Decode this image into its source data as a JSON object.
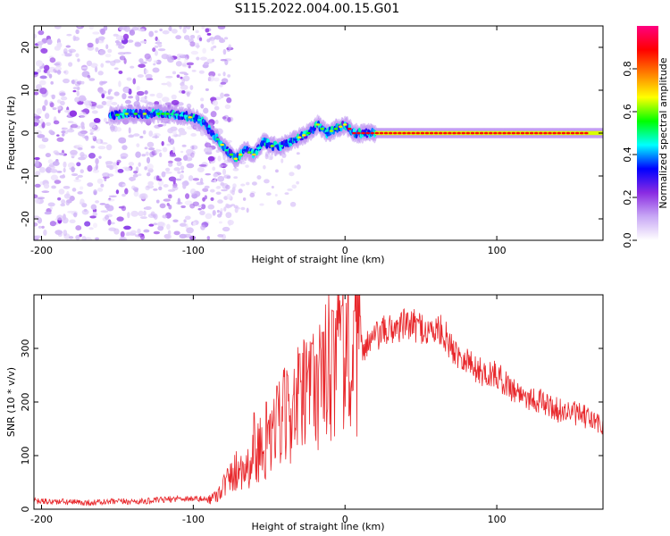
{
  "title": "S115.2022.004.00.15.G01",
  "chart_data": [
    {
      "type": "heatmap",
      "title": "",
      "xlabel": "Height of straight line (km)",
      "ylabel": "Frequency (Hz)",
      "xlim": [
        -205,
        170
      ],
      "ylim": [
        -25,
        25
      ],
      "x_ticks": [
        -200,
        -100,
        0,
        100
      ],
      "y_ticks": [
        -20,
        -10,
        0,
        10,
        20
      ],
      "colorbar": {
        "label": "Normalized spectral amplitude",
        "range": [
          0,
          1
        ],
        "ticks": [
          0.0,
          0.2,
          0.4,
          0.6,
          0.8
        ],
        "colormap": [
          "#ffffff",
          "#c8a8f5",
          "#8a2be2",
          "#0000ff",
          "#00ffff",
          "#00ff00",
          "#ffff00",
          "#ff7f00",
          "#ff0000",
          "#ff0080"
        ]
      },
      "ridge": {
        "x": [
          -155,
          -145,
          -135,
          -125,
          -115,
          -105,
          -95,
          -85,
          -78,
          -72,
          -66,
          -60,
          -54,
          -48,
          -42,
          -36,
          -30,
          -24,
          -18,
          -12,
          -6,
          0,
          6,
          20,
          50,
          100,
          170
        ],
        "freq": [
          4,
          4.5,
          4.5,
          4.5,
          4.5,
          4,
          3,
          -1,
          -4,
          -6,
          -4,
          -5,
          -2,
          -3,
          -3,
          -2,
          -1,
          0,
          2,
          0,
          1,
          2,
          0,
          0,
          0,
          0,
          0
        ]
      },
      "noise_region": [
        -205,
        -90
      ]
    },
    {
      "type": "line",
      "title": "",
      "xlabel": "Height of straight line (km)",
      "ylabel": "SNR (10 * v/v)",
      "xlim": [
        -205,
        170
      ],
      "ylim": [
        0,
        400
      ],
      "x_ticks": [
        -200,
        -100,
        0,
        100
      ],
      "y_ticks": [
        0,
        100,
        200,
        300
      ],
      "color": "#e8272b",
      "series": [
        {
          "x": [
            -205,
            -190,
            -170,
            -150,
            -130,
            -110,
            -100,
            -90,
            -85,
            -80,
            -75,
            -70,
            -65,
            -60,
            -55,
            -50,
            -45,
            -40,
            -35,
            -30,
            -25,
            -20,
            -15,
            -10,
            -5,
            0,
            5,
            10,
            15,
            20,
            25,
            30,
            40,
            50,
            55,
            60,
            65,
            70,
            75,
            80,
            85,
            90,
            100,
            110,
            120,
            130,
            140,
            150,
            160,
            170
          ],
          "values": [
            15,
            14,
            12,
            14,
            15,
            20,
            20,
            18,
            25,
            45,
            60,
            80,
            75,
            95,
            120,
            110,
            150,
            170,
            190,
            200,
            210,
            230,
            250,
            270,
            300,
            280,
            270,
            300,
            310,
            320,
            330,
            335,
            345,
            340,
            330,
            335,
            330,
            300,
            290,
            280,
            265,
            255,
            250,
            225,
            210,
            200,
            185,
            180,
            170,
            155
          ],
          "spikes": {
            "x": [
              -60,
              -52,
              -45,
              -38,
              -30,
              -22,
              -15,
              -8,
              -2,
              2,
              6,
              10
            ],
            "values": [
              180,
              200,
              230,
              250,
              290,
              310,
              330,
              370,
              380,
              400,
              370,
              360
            ]
          }
        }
      ]
    }
  ]
}
